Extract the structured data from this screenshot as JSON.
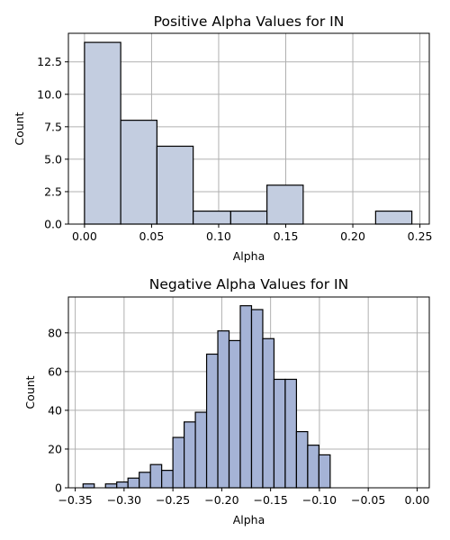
{
  "chart_data": [
    {
      "type": "bar",
      "title": "Positive Alpha Values for IN",
      "xlabel": "Alpha",
      "ylabel": "Count",
      "color": "#c3cde0",
      "grid": true,
      "xlim": [
        -0.012,
        0.257
      ],
      "ylim": [
        0,
        14.7
      ],
      "xticks": [
        0.0,
        0.05,
        0.1,
        0.15,
        0.2,
        0.25
      ],
      "xtick_labels": [
        "0.00",
        "0.05",
        "0.10",
        "0.15",
        "0.20",
        "0.25"
      ],
      "yticks": [
        0,
        2.5,
        5.0,
        7.5,
        10.0,
        12.5
      ],
      "ytick_labels": [
        "0.0",
        "2.5",
        "5.0",
        "7.5",
        "10.0",
        "12.5"
      ],
      "bins": [
        {
          "x0": 0.0,
          "x1": 0.027,
          "count": 14
        },
        {
          "x0": 0.027,
          "x1": 0.054,
          "count": 8
        },
        {
          "x0": 0.054,
          "x1": 0.081,
          "count": 6
        },
        {
          "x0": 0.081,
          "x1": 0.109,
          "count": 1
        },
        {
          "x0": 0.109,
          "x1": 0.136,
          "count": 1
        },
        {
          "x0": 0.136,
          "x1": 0.163,
          "count": 3
        },
        {
          "x0": 0.163,
          "x1": 0.19,
          "count": 0
        },
        {
          "x0": 0.19,
          "x1": 0.217,
          "count": 0
        },
        {
          "x0": 0.217,
          "x1": 0.244,
          "count": 1
        }
      ]
    },
    {
      "type": "bar",
      "title": "Negative Alpha Values for IN",
      "xlabel": "Alpha",
      "ylabel": "Count",
      "color": "#a5b3d6",
      "grid": true,
      "xlim": [
        -0.357,
        0.0125
      ],
      "ylim": [
        0,
        98.5
      ],
      "xticks": [
        -0.35,
        -0.3,
        -0.25,
        -0.2,
        -0.15,
        -0.1,
        -0.05,
        0.0
      ],
      "xtick_labels": [
        "−0.35",
        "−0.30",
        "−0.25",
        "−0.20",
        "−0.15",
        "−0.10",
        "−0.05",
        "0.00"
      ],
      "yticks": [
        0,
        20,
        40,
        60,
        80
      ],
      "ytick_labels": [
        "0",
        "20",
        "40",
        "60",
        "80"
      ],
      "bins": [
        {
          "x0": -0.342,
          "x1": -0.3305,
          "count": 2
        },
        {
          "x0": -0.3305,
          "x1": -0.319,
          "count": 0
        },
        {
          "x0": -0.319,
          "x1": -0.3075,
          "count": 2
        },
        {
          "x0": -0.3075,
          "x1": -0.296,
          "count": 3
        },
        {
          "x0": -0.296,
          "x1": -0.2845,
          "count": 5
        },
        {
          "x0": -0.2845,
          "x1": -0.273,
          "count": 8
        },
        {
          "x0": -0.273,
          "x1": -0.2615,
          "count": 12
        },
        {
          "x0": -0.2615,
          "x1": -0.25,
          "count": 9
        },
        {
          "x0": -0.25,
          "x1": -0.2385,
          "count": 26
        },
        {
          "x0": -0.2385,
          "x1": -0.227,
          "count": 34
        },
        {
          "x0": -0.227,
          "x1": -0.2155,
          "count": 39
        },
        {
          "x0": -0.2155,
          "x1": -0.204,
          "count": 69
        },
        {
          "x0": -0.204,
          "x1": -0.1925,
          "count": 81
        },
        {
          "x0": -0.1925,
          "x1": -0.181,
          "count": 76
        },
        {
          "x0": -0.181,
          "x1": -0.1695,
          "count": 94
        },
        {
          "x0": -0.1695,
          "x1": -0.158,
          "count": 92
        },
        {
          "x0": -0.158,
          "x1": -0.1465,
          "count": 77
        },
        {
          "x0": -0.1465,
          "x1": -0.135,
          "count": 56
        },
        {
          "x0": -0.135,
          "x1": -0.1235,
          "count": 56
        },
        {
          "x0": -0.1235,
          "x1": -0.112,
          "count": 29
        },
        {
          "x0": -0.112,
          "x1": -0.1005,
          "count": 22
        },
        {
          "x0": -0.1005,
          "x1": -0.089,
          "count": 17
        }
      ]
    }
  ]
}
